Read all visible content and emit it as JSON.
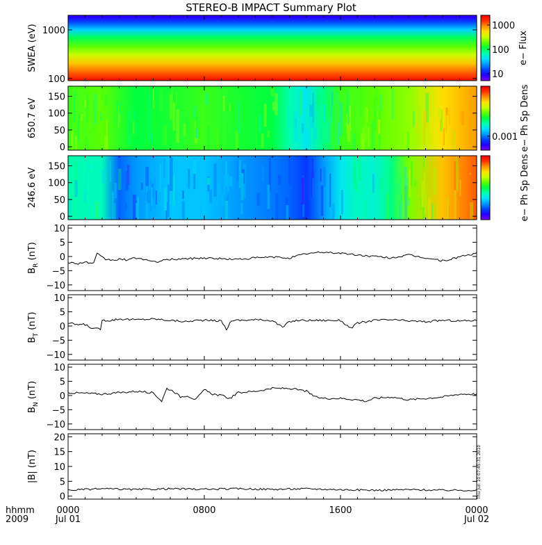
{
  "title": "STEREO-B IMPACT Summary Plot",
  "stamp": "Thu Jun 10 07:45:31 2010",
  "time_axis": {
    "row1_label": "hhmm",
    "row2_label": "2009",
    "ticks": [
      {
        "time": "0000",
        "date": "Jul 01",
        "hour": 0
      },
      {
        "time": "0800",
        "date": "",
        "hour": 8
      },
      {
        "time": "1600",
        "date": "",
        "hour": 16
      },
      {
        "time": "0000",
        "date": "Jul 02",
        "hour": 24
      }
    ]
  },
  "colormap": [
    "#7d00ff",
    "#2200ff",
    "#0044ff",
    "#0099ff",
    "#00e0ff",
    "#00ffb0",
    "#00ff40",
    "#60ff00",
    "#c8ff00",
    "#ffe000",
    "#ff9000",
    "#ff3000",
    "#f00000"
  ],
  "chart_data": [
    {
      "type": "heatmap",
      "name": "swea",
      "ylabel": "SWEA (eV)",
      "yscale": "log",
      "ylim": [
        90,
        2000
      ],
      "yticks": [
        {
          "value": 100,
          "label": "100"
        },
        {
          "value": 1000,
          "label": "1000"
        }
      ],
      "colorbar": {
        "title": "e− Flux",
        "scale": "log",
        "ticks": [
          "1000",
          "100",
          "10"
        ]
      },
      "bands": [
        {
          "energy_eV": 1800,
          "color_level": 0.08
        },
        {
          "energy_eV": 1400,
          "color_level": 0.18
        },
        {
          "energy_eV": 1000,
          "color_level": 0.32
        },
        {
          "energy_eV": 700,
          "color_level": 0.48
        },
        {
          "energy_eV": 450,
          "color_level": 0.58
        },
        {
          "energy_eV": 300,
          "color_level": 0.68
        },
        {
          "energy_eV": 200,
          "color_level": 0.78
        },
        {
          "energy_eV": 130,
          "color_level": 0.88
        },
        {
          "energy_eV": 95,
          "color_level": 0.96
        }
      ]
    },
    {
      "type": "heatmap",
      "name": "pad_650",
      "ylabel": "650.7 eV",
      "ylim": [
        -10,
        180
      ],
      "yticks": [
        {
          "value": 0,
          "label": "0"
        },
        {
          "value": 50,
          "label": "50"
        },
        {
          "value": 100,
          "label": "100"
        },
        {
          "value": 150,
          "label": "150"
        }
      ],
      "colorbar": {
        "title": "e− Ph Sp Dens",
        "ticks": [
          "0.001"
        ]
      },
      "hours": [
        0,
        2,
        4,
        6,
        8,
        10,
        12,
        13,
        14,
        15,
        16,
        18,
        20,
        22,
        24
      ],
      "levels": [
        0.55,
        0.58,
        0.5,
        0.52,
        0.55,
        0.52,
        0.5,
        0.42,
        0.35,
        0.45,
        0.55,
        0.58,
        0.62,
        0.75,
        0.82
      ]
    },
    {
      "type": "heatmap",
      "name": "pad_246",
      "ylabel": "246.6 eV",
      "ylim": [
        -10,
        180
      ],
      "yticks": [
        {
          "value": 0,
          "label": "0"
        },
        {
          "value": 50,
          "label": "50"
        },
        {
          "value": 100,
          "label": "100"
        },
        {
          "value": 150,
          "label": "150"
        }
      ],
      "colorbar": {
        "title": "e− Ph Sp Dens",
        "ticks": []
      },
      "hours": [
        0,
        2,
        3,
        4,
        6,
        8,
        10,
        12,
        13,
        14,
        15,
        16,
        17,
        18,
        19,
        20,
        22,
        24
      ],
      "levels": [
        0.42,
        0.4,
        0.2,
        0.25,
        0.3,
        0.3,
        0.25,
        0.22,
        0.2,
        0.15,
        0.25,
        0.35,
        0.4,
        0.38,
        0.45,
        0.6,
        0.78,
        0.88
      ]
    },
    {
      "type": "line",
      "name": "BR",
      "ylabel_main": "B",
      "ylabel_sub": "R",
      "ylabel_unit": " (nT)",
      "ylim": [
        -12,
        11
      ],
      "yticks": [
        {
          "value": -10,
          "label": "−10"
        },
        {
          "value": -5,
          "label": "−5"
        },
        {
          "value": 0,
          "label": "0"
        },
        {
          "value": 5,
          "label": "5"
        },
        {
          "value": 10,
          "label": "10"
        }
      ],
      "x": [
        0,
        0.5,
        1,
        1.5,
        1.7,
        1.9,
        2.2,
        2.6,
        3,
        3.5,
        4,
        4.5,
        5,
        6,
        7,
        8,
        9,
        10,
        11,
        12,
        13,
        14,
        15,
        16,
        17,
        18,
        19,
        20,
        21,
        22,
        22.5,
        23,
        24
      ],
      "y": [
        -2,
        -2.5,
        -2,
        -2.5,
        1,
        0,
        -1,
        -1.3,
        -1,
        -1.2,
        -0.5,
        -1,
        -2,
        -1,
        -0.8,
        -0.5,
        -0.8,
        -1,
        -0.5,
        -0.2,
        -0.5,
        1,
        1.5,
        1.2,
        0.5,
        0,
        -0.5,
        0.5,
        -0.5,
        -1.5,
        -1,
        0,
        1
      ]
    },
    {
      "type": "line",
      "name": "BT",
      "ylabel_main": "B",
      "ylabel_sub": "T",
      "ylabel_unit": " (nT)",
      "ylim": [
        -12,
        11
      ],
      "yticks": [
        {
          "value": -10,
          "label": "−10"
        },
        {
          "value": -5,
          "label": "−5"
        },
        {
          "value": 0,
          "label": "0"
        },
        {
          "value": 5,
          "label": "5"
        },
        {
          "value": 10,
          "label": "10"
        }
      ],
      "x": [
        0,
        0.5,
        1,
        1.5,
        1.9,
        2,
        2.5,
        3,
        4,
        5,
        6,
        7,
        7.5,
        8,
        9,
        9.3,
        9.6,
        10,
        11,
        12,
        12.6,
        13,
        13.5,
        14,
        15,
        16,
        16.6,
        17,
        17.5,
        18,
        19,
        20,
        21,
        22,
        23,
        24
      ],
      "y": [
        1,
        0.5,
        0.5,
        -1,
        -1,
        2,
        2,
        2.5,
        2.2,
        2.5,
        2,
        1.5,
        2,
        2,
        1.8,
        -1.2,
        2,
        2,
        2.2,
        2,
        -0.5,
        1.5,
        2,
        2,
        2,
        2,
        -0.8,
        1,
        1.5,
        2,
        2.2,
        1.8,
        1.5,
        2,
        1.8,
        2
      ]
    },
    {
      "type": "line",
      "name": "BN",
      "ylabel_main": "B",
      "ylabel_sub": "N",
      "ylabel_unit": " (nT)",
      "ylim": [
        -12,
        11
      ],
      "yticks": [
        {
          "value": -10,
          "label": "−10"
        },
        {
          "value": -5,
          "label": "−5"
        },
        {
          "value": 0,
          "label": "0"
        },
        {
          "value": 5,
          "label": "5"
        },
        {
          "value": 10,
          "label": "10"
        }
      ],
      "x": [
        0,
        1,
        2,
        3,
        4,
        5,
        5.5,
        5.8,
        6.2,
        6.6,
        7,
        7.5,
        8,
        8.5,
        9,
        9.5,
        10,
        11,
        12,
        13,
        14,
        14.5,
        15,
        16,
        17,
        17.5,
        18,
        19,
        20,
        21,
        22,
        23,
        24
      ],
      "y": [
        1,
        0.8,
        0.5,
        1,
        1.5,
        1,
        -2,
        2.5,
        1.5,
        -0.5,
        0,
        -1.5,
        2,
        0.5,
        0,
        -1,
        1,
        1.5,
        2.5,
        2.5,
        1.5,
        -0.5,
        -1,
        -1,
        -1.5,
        -2,
        -1,
        -0.5,
        -1.5,
        -1,
        -0.5,
        0.5,
        0.5
      ]
    },
    {
      "type": "line",
      "name": "Bmag",
      "ylabel_main": "|B|",
      "ylabel_sub": "",
      "ylabel_unit": " (nT)",
      "ylim": [
        -1,
        21
      ],
      "yticks": [
        {
          "value": 0,
          "label": "0"
        },
        {
          "value": 5,
          "label": "5"
        },
        {
          "value": 10,
          "label": "10"
        },
        {
          "value": 15,
          "label": "15"
        },
        {
          "value": 20,
          "label": "20"
        }
      ],
      "x": [
        0,
        2,
        4,
        6,
        8,
        10,
        12,
        14,
        16,
        18,
        20,
        22,
        24
      ],
      "y": [
        2,
        2.5,
        2.2,
        2.5,
        2.3,
        2.5,
        2.3,
        2.5,
        2.2,
        2,
        2.2,
        2,
        2
      ]
    }
  ]
}
